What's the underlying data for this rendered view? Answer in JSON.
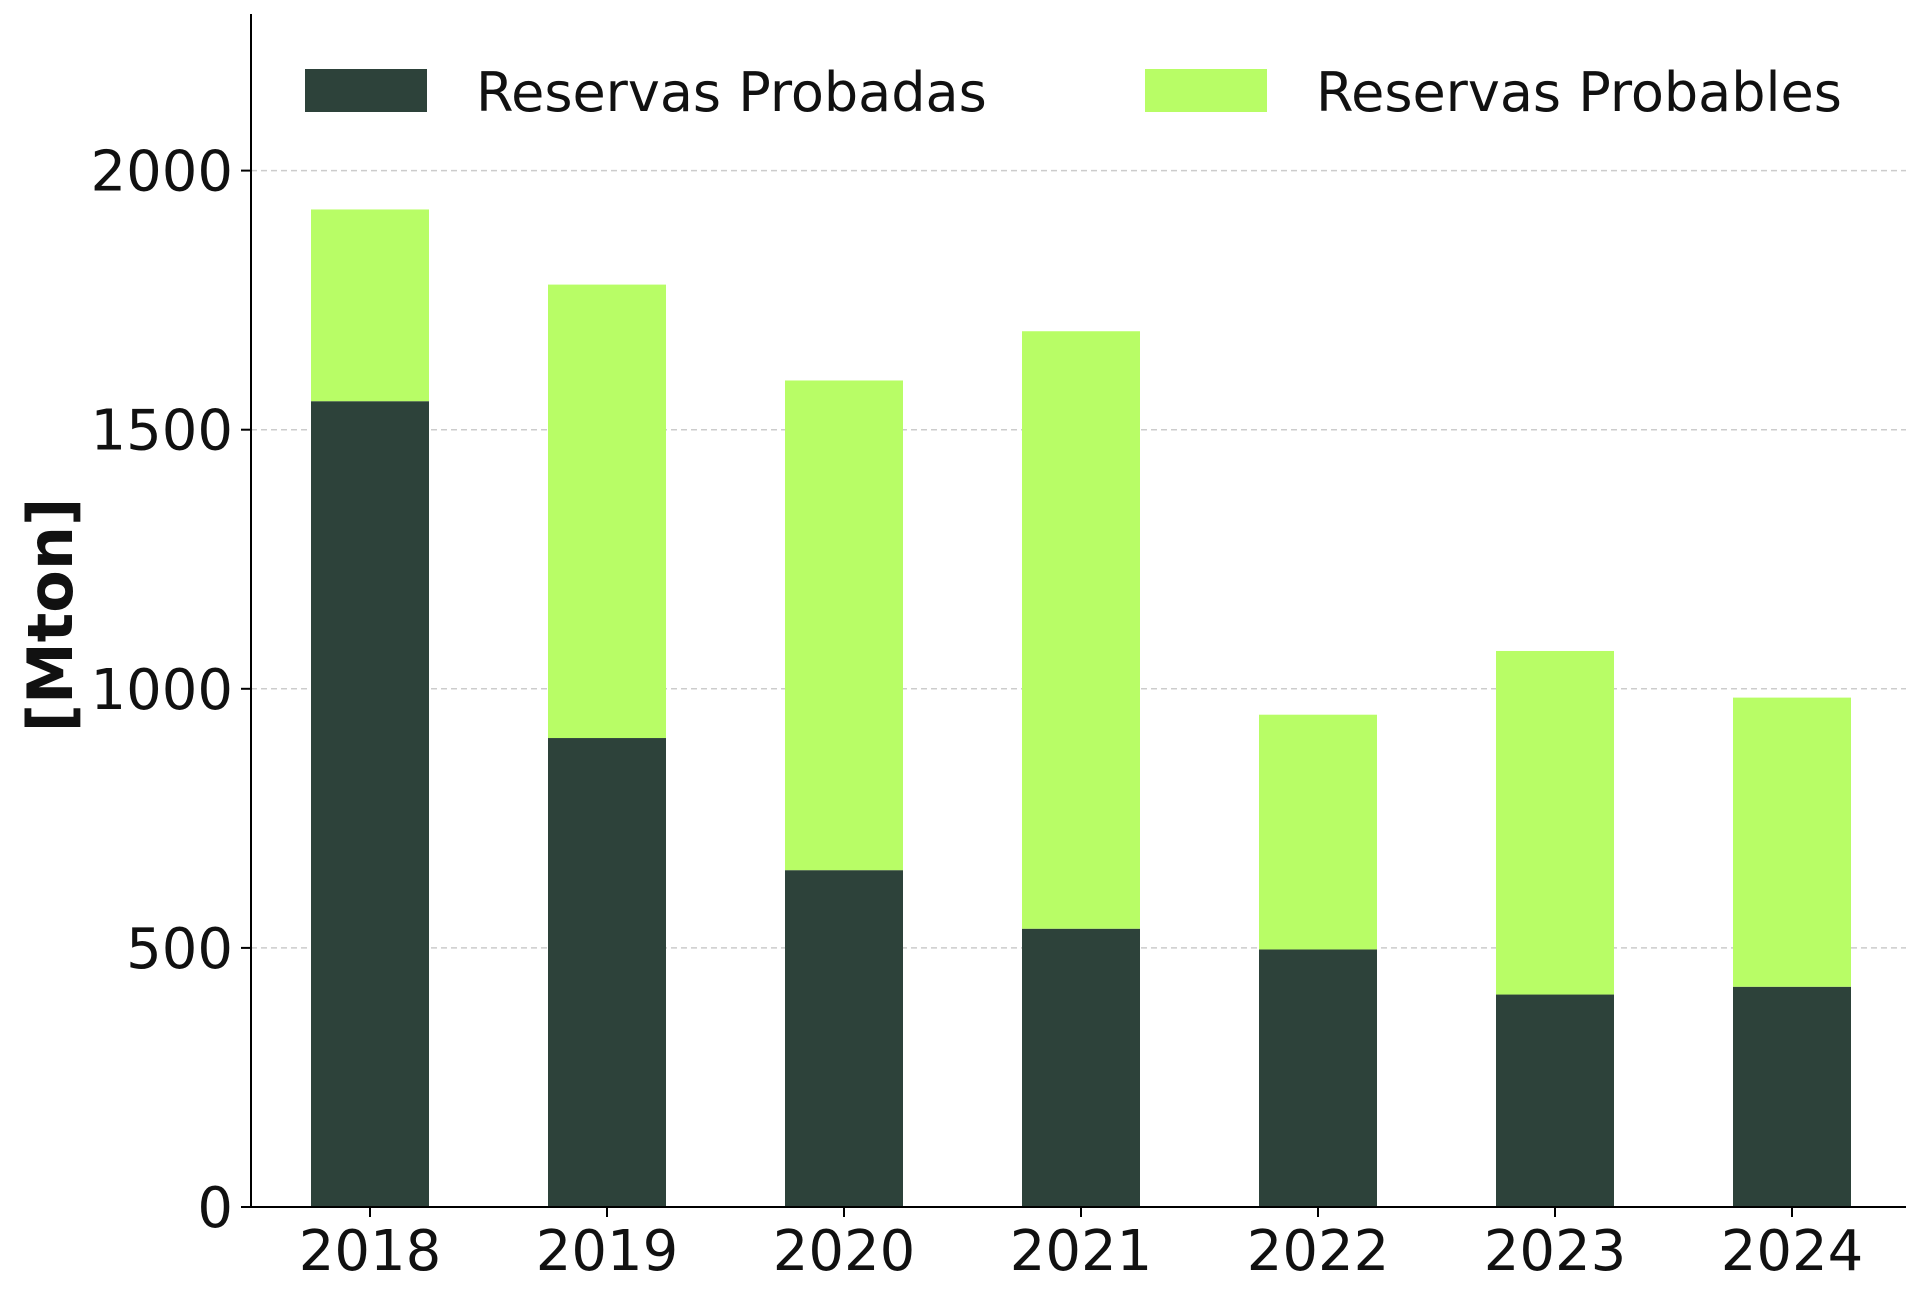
{
  "chart_data": {
    "type": "bar",
    "stacked": true,
    "title": "",
    "xlabel": "",
    "ylabel": "[Mton]",
    "categories": [
      "2018",
      "2019",
      "2020",
      "2021",
      "2022",
      "2023",
      "2024"
    ],
    "series": [
      {
        "name": "Reservas Probadas",
        "color": "#2d423a",
        "values": [
          1555,
          905,
          650,
          537,
          497,
          410,
          425
        ]
      },
      {
        "name": "Reservas Probables",
        "color": "#b8fd66",
        "values": [
          370,
          875,
          945,
          1153,
          453,
          663,
          558
        ]
      }
    ],
    "ylim": [
      0,
      2300
    ],
    "yticks": [
      0,
      500,
      1000,
      1500,
      2000
    ],
    "grid": "horizontal dashed",
    "legend_position": "top"
  }
}
